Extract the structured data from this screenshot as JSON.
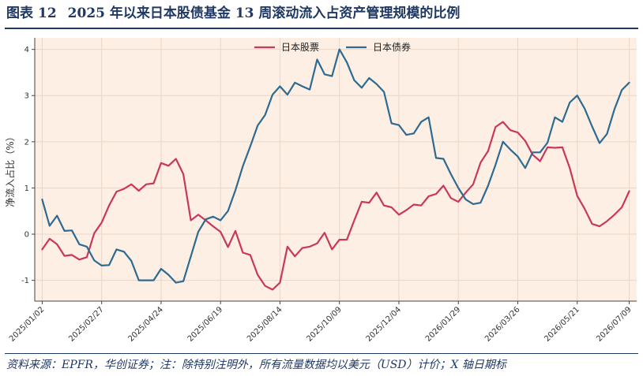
{
  "figure": {
    "label": "图表",
    "number": "12",
    "title": "2025 年以来日本股债基金 13 周滚动流入占资产管理规模的比例",
    "source": "资料来源：EPFR，华创证券；注：除特别注明外，所有流量数据均以美元（USD）计价；X 轴日期标"
  },
  "colors": {
    "background": "#fdefe3",
    "brand": "#1f3864",
    "stocks": "#c8385a",
    "bonds": "#2e6a91",
    "grid": "#ead6c6"
  },
  "chart_data": {
    "type": "line",
    "ylabel": "净流入占比（%）",
    "ylim": [
      -1.45,
      4.25
    ],
    "yticks": [
      -1,
      0,
      1,
      2,
      3,
      4
    ],
    "xlim": [
      "2024-12-26",
      "2026-07-16"
    ],
    "xtick_labels": [
      "2025/01/02",
      "2025/02/27",
      "2025/04/24",
      "2025/06/19",
      "2025/08/14",
      "2025/10/09",
      "2025/12/04",
      "2026/01/29",
      "2026/03/26",
      "2026/05/21",
      "2026/07/09"
    ],
    "grid": true,
    "legend": "top-center",
    "start_date": "2025-01-02",
    "step_days": 7,
    "series": [
      {
        "name": "日本股票",
        "color": "#c8385a",
        "values": [
          -0.33,
          -0.1,
          -0.22,
          -0.47,
          -0.45,
          -0.55,
          -0.5,
          0.02,
          0.25,
          0.62,
          0.92,
          0.98,
          1.08,
          0.94,
          1.08,
          1.1,
          1.54,
          1.48,
          1.63,
          1.3,
          0.3,
          0.42,
          0.3,
          0.17,
          0.05,
          -0.28,
          0.07,
          -0.4,
          -0.45,
          -0.88,
          -1.12,
          -1.2,
          -1.05,
          -0.27,
          -0.48,
          -0.3,
          -0.27,
          -0.2,
          0.03,
          -0.33,
          -0.12,
          -0.12,
          0.3,
          0.7,
          0.68,
          0.9,
          0.62,
          0.58,
          0.42,
          0.52,
          0.64,
          0.62,
          0.82,
          0.87,
          1.05,
          0.78,
          0.7,
          0.9,
          1.08,
          1.55,
          1.8,
          2.32,
          2.43,
          2.25,
          2.2,
          2.02,
          1.72,
          1.58,
          1.88,
          1.87,
          1.88,
          1.43,
          0.83,
          0.55,
          0.22,
          0.17,
          0.28,
          0.42,
          0.58,
          0.93
        ]
      },
      {
        "name": "日本债券",
        "color": "#2e6a91",
        "values": [
          0.75,
          0.18,
          0.4,
          0.07,
          0.08,
          -0.22,
          -0.27,
          -0.57,
          -0.68,
          -0.67,
          -0.33,
          -0.38,
          -0.58,
          -1.0,
          -1.0,
          -1.0,
          -0.75,
          -0.88,
          -1.05,
          -1.02,
          -0.48,
          0.05,
          0.32,
          0.38,
          0.3,
          0.5,
          0.95,
          1.47,
          1.9,
          2.35,
          2.58,
          3.02,
          3.2,
          3.02,
          3.28,
          3.2,
          3.13,
          3.78,
          3.46,
          3.42,
          4.0,
          3.72,
          3.33,
          3.17,
          3.38,
          3.25,
          3.08,
          2.4,
          2.36,
          2.15,
          2.18,
          2.43,
          2.53,
          1.65,
          1.63,
          1.3,
          1.0,
          0.75,
          0.65,
          0.68,
          1.05,
          1.5,
          2.0,
          1.83,
          1.68,
          1.43,
          1.77,
          1.77,
          1.98,
          2.53,
          2.43,
          2.85,
          3.0,
          2.72,
          2.33,
          1.97,
          2.17,
          2.7,
          3.12,
          3.28
        ]
      }
    ]
  }
}
